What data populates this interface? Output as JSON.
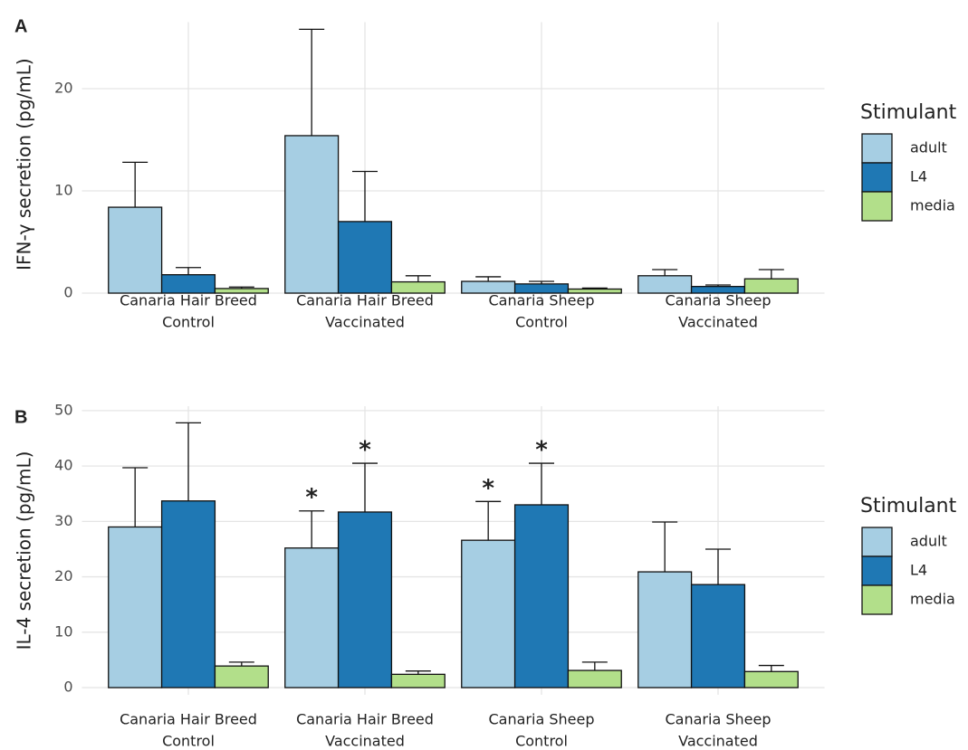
{
  "chart_data": [
    {
      "type": "bar",
      "panel_label": "A",
      "y_label": "IFN-γ secretion (pg/mL)",
      "categories": [
        [
          "Canaria Hair Breed",
          "Control"
        ],
        [
          "Canaria Hair Breed",
          "Vaccinated"
        ],
        [
          "Canaria Sheep",
          "Control"
        ],
        [
          "Canaria Sheep",
          "Vaccinated"
        ]
      ],
      "series": [
        {
          "name": "adult",
          "color": "#a6cee3",
          "values": [
            8.4,
            15.4,
            1.15,
            1.7
          ],
          "errors": [
            4.4,
            10.4,
            0.45,
            0.6
          ]
        },
        {
          "name": "L4",
          "color": "#1f78b4",
          "values": [
            1.8,
            7.0,
            0.9,
            0.65
          ],
          "errors": [
            0.7,
            4.9,
            0.25,
            0.15
          ]
        },
        {
          "name": "media",
          "color": "#b2df8a",
          "values": [
            0.45,
            1.1,
            0.4,
            1.4
          ],
          "errors": [
            0.15,
            0.6,
            0.1,
            0.9
          ]
        }
      ],
      "ylim": [
        -1.3,
        26.5
      ],
      "yticks": [
        0,
        10,
        20
      ],
      "grid": true,
      "legend_title": "Stimulant",
      "legend": "right"
    },
    {
      "type": "bar",
      "panel_label": "B",
      "y_label": "IL-4 secretion (pg/mL)",
      "categories": [
        [
          "Canaria Hair Breed",
          "Control"
        ],
        [
          "Canaria Hair Breed",
          "Vaccinated"
        ],
        [
          "Canaria Sheep",
          "Control"
        ],
        [
          "Canaria Sheep",
          "Vaccinated"
        ]
      ],
      "series": [
        {
          "name": "adult",
          "color": "#a6cee3",
          "values": [
            29.0,
            25.2,
            26.6,
            20.9
          ],
          "errors": [
            10.7,
            6.7,
            7.0,
            9.0
          ],
          "annotations": [
            null,
            "*",
            "*",
            null
          ]
        },
        {
          "name": "L4",
          "color": "#1f78b4",
          "values": [
            33.7,
            31.7,
            33.0,
            18.6
          ],
          "errors": [
            14.1,
            8.8,
            7.5,
            6.4
          ],
          "annotations": [
            null,
            "*",
            "*",
            null
          ]
        },
        {
          "name": "media",
          "color": "#b2df8a",
          "values": [
            3.9,
            2.4,
            3.1,
            2.9
          ],
          "errors": [
            0.7,
            0.6,
            1.5,
            1.1
          ]
        }
      ],
      "ylim": [
        -1.3,
        50.8
      ],
      "yticks": [
        0,
        10,
        20,
        30,
        40,
        50
      ],
      "grid": true,
      "legend_title": "Stimulant",
      "legend": "right"
    }
  ]
}
